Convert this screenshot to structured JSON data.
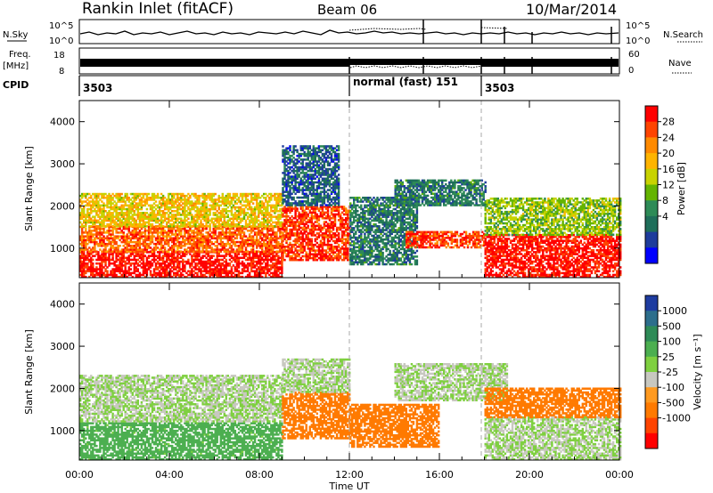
{
  "header": {
    "station": "Rankin Inlet (fitACF)",
    "beam": "Beam 06",
    "date": "10/Mar/2014"
  },
  "mini_panels": {
    "nsky_label": "N.Sky",
    "nsearch_label": "N.Search",
    "noise_ticks": [
      "10^5",
      "10^0"
    ],
    "freq_label": "Freq.",
    "freq_unit": "[MHz]",
    "freq_ticks": [
      "18",
      "8"
    ],
    "nave_label": "Nave",
    "nave_ticks": [
      "60",
      "0"
    ],
    "cpid_label": "CPID",
    "cpid_segments": [
      {
        "start_hour": 0,
        "text": "3503"
      },
      {
        "start_hour": 12,
        "text": "normal (fast)  151"
      },
      {
        "start_hour": 18,
        "text": "3503"
      }
    ]
  },
  "chart_data": [
    {
      "type": "heatmap",
      "quantity": "power",
      "x_field": "time_ut_hours",
      "xlim": [
        0,
        24
      ],
      "ylabel": "Slant Range [km]",
      "ylim": [
        300,
        4500
      ],
      "yticks": [
        1000,
        2000,
        3000,
        4000
      ],
      "colorbar": {
        "label": "Power [dB]",
        "ticks": [
          "28",
          "24",
          "20",
          "16",
          "12",
          "8",
          "4"
        ],
        "colors": [
          "#ff0000",
          "#ff4400",
          "#ff8a00",
          "#ffb400",
          "#c8d200",
          "#64b400",
          "#2e8b57",
          "#1f6e5a",
          "#1e3c9c",
          "#0000ff"
        ]
      },
      "regions": [
        {
          "t0": 0,
          "t1": 9,
          "r0": 300,
          "r1": 900,
          "value": 28
        },
        {
          "t0": 0,
          "t1": 9,
          "r0": 900,
          "r1": 1500,
          "value": 24
        },
        {
          "t0": 0,
          "t1": 9,
          "r0": 1500,
          "r1": 2300,
          "value": 18
        },
        {
          "t0": 9,
          "t1": 12,
          "r0": 700,
          "r1": 2000,
          "value": 26
        },
        {
          "t0": 9,
          "t1": 11.5,
          "r0": 2000,
          "r1": 3400,
          "value": 6
        },
        {
          "t0": 12,
          "t1": 15,
          "r0": 600,
          "r1": 2200,
          "value": 8
        },
        {
          "t0": 14,
          "t1": 18,
          "r0": 2000,
          "r1": 2600,
          "value": 8
        },
        {
          "t0": 14.5,
          "t1": 18,
          "r0": 1000,
          "r1": 1400,
          "value": 26
        },
        {
          "t0": 18,
          "t1": 24,
          "r0": 300,
          "r1": 1300,
          "value": 28
        },
        {
          "t0": 18,
          "t1": 24,
          "r0": 1300,
          "r1": 2200,
          "value": 14
        }
      ]
    },
    {
      "type": "heatmap",
      "quantity": "velocity",
      "x_field": "time_ut_hours",
      "xlim": [
        0,
        24
      ],
      "xlabel": "Time UT",
      "xticks": [
        "00:00",
        "04:00",
        "08:00",
        "12:00",
        "16:00",
        "20:00",
        "00:00"
      ],
      "ylabel": "Slant Range [km]",
      "ylim": [
        300,
        4500
      ],
      "yticks": [
        1000,
        2000,
        3000,
        4000
      ],
      "colorbar": {
        "label": "Velocity [m s⁻¹]",
        "ticks": [
          "1000",
          "500",
          "100",
          "25",
          "-25",
          "-100",
          "-500",
          "-1000"
        ],
        "colors": [
          "#1e3ca0",
          "#2d6e8c",
          "#2e8b57",
          "#4caf50",
          "#7fd040",
          "#c8c8c0",
          "#ff9a20",
          "#ff7a00",
          "#ff4400",
          "#ff0000"
        ]
      },
      "regions": [
        {
          "t0": 0,
          "t1": 9,
          "r0": 300,
          "r1": 1200,
          "value": 100
        },
        {
          "t0": 0,
          "t1": 9,
          "r0": 1200,
          "r1": 2300,
          "value": 0
        },
        {
          "t0": 9,
          "t1": 12,
          "r0": 800,
          "r1": 1900,
          "value": -500
        },
        {
          "t0": 9,
          "t1": 12,
          "r0": 1900,
          "r1": 2700,
          "value": 0
        },
        {
          "t0": 12,
          "t1": 16,
          "r0": 600,
          "r1": 1600,
          "value": -500
        },
        {
          "t0": 14,
          "t1": 19,
          "r0": 1700,
          "r1": 2600,
          "value": 0
        },
        {
          "t0": 18,
          "t1": 24,
          "r0": 300,
          "r1": 1300,
          "value": 0
        },
        {
          "t0": 18,
          "t1": 24,
          "r0": 1300,
          "r1": 2000,
          "value": -500
        }
      ]
    }
  ]
}
